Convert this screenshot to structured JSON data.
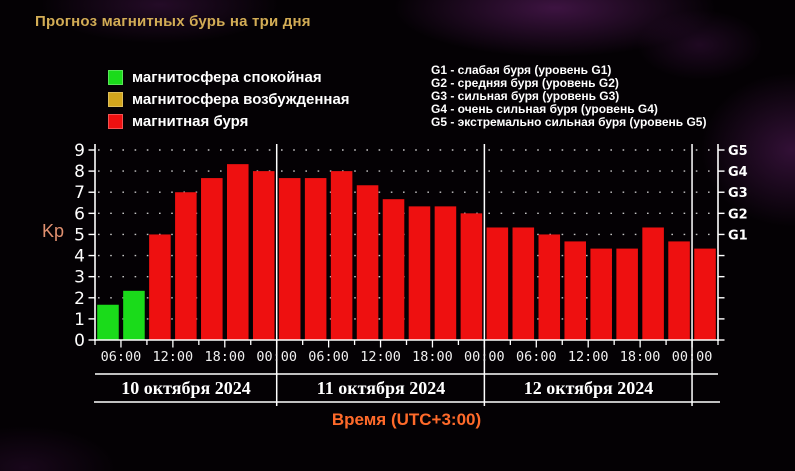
{
  "title": "Прогноз магнитных бурь на три дня",
  "legend": {
    "items": [
      {
        "name": "quiet",
        "label": "магнитосфера спокойная",
        "color": "#1adb1a"
      },
      {
        "name": "excited",
        "label": "магнитосфера возбужденная",
        "color": "#d2a51d"
      },
      {
        "name": "storm",
        "label": "магнитная буря",
        "color": "#ee1010"
      }
    ]
  },
  "storm_scale": {
    "items": [
      "G1 - слабая буря (уровень G1)",
      "G2 - средняя буря (уровень G2)",
      "G3 - сильная буря (уровень G3)",
      "G4 - очень сильная буря (уровень G4)",
      "G5 - экстремально сильная буря (уровень G5)"
    ]
  },
  "chart_data": {
    "type": "bar",
    "title": "Прогноз магнитных бурь на три дня",
    "ylabel": "Kp",
    "xlabel": "Время (UTC+3:00)",
    "ylim": [
      0,
      9
    ],
    "grid": true,
    "hours_per_bar": 3,
    "y_ticks": [
      "0",
      "1",
      "2",
      "3",
      "4",
      "5",
      "6",
      "7",
      "8",
      "9"
    ],
    "right_axis": [
      {
        "label": "G1",
        "kp": 5
      },
      {
        "label": "G2",
        "kp": 6
      },
      {
        "label": "G3",
        "kp": 7
      },
      {
        "label": "G4",
        "kp": 8
      },
      {
        "label": "G5",
        "kp": 9
      }
    ],
    "x_tick_labels": [
      "06:00",
      "12:00",
      "18:00",
      "00:00"
    ],
    "x_tick_repeat": 3,
    "state_colors": {
      "quiet": "#1adb1a",
      "excited": "#d2a51d",
      "storm": "#ee1010"
    },
    "day_divider_slots": [
      7,
      15,
      23
    ],
    "series": [
      {
        "date": "10 октября 2024",
        "values": [
          1.67,
          2.33,
          5.0,
          7.0,
          7.67,
          8.33,
          8.0
        ],
        "states": [
          "quiet",
          "quiet",
          "storm",
          "storm",
          "storm",
          "storm",
          "storm"
        ]
      },
      {
        "date": "11 октября 2024",
        "values": [
          7.67,
          7.67,
          8.0,
          7.33,
          6.67,
          6.33,
          6.33,
          6.0
        ],
        "states": [
          "storm",
          "storm",
          "storm",
          "storm",
          "storm",
          "storm",
          "storm",
          "storm"
        ]
      },
      {
        "date": "12 октября 2024",
        "values": [
          5.33,
          5.33,
          5.0,
          4.67,
          4.33,
          4.33,
          5.33,
          4.67
        ],
        "states": [
          "storm",
          "storm",
          "storm",
          "storm",
          "storm",
          "storm",
          "storm",
          "storm"
        ]
      },
      {
        "date": "",
        "values": [
          4.33
        ],
        "states": [
          "storm"
        ]
      }
    ]
  }
}
